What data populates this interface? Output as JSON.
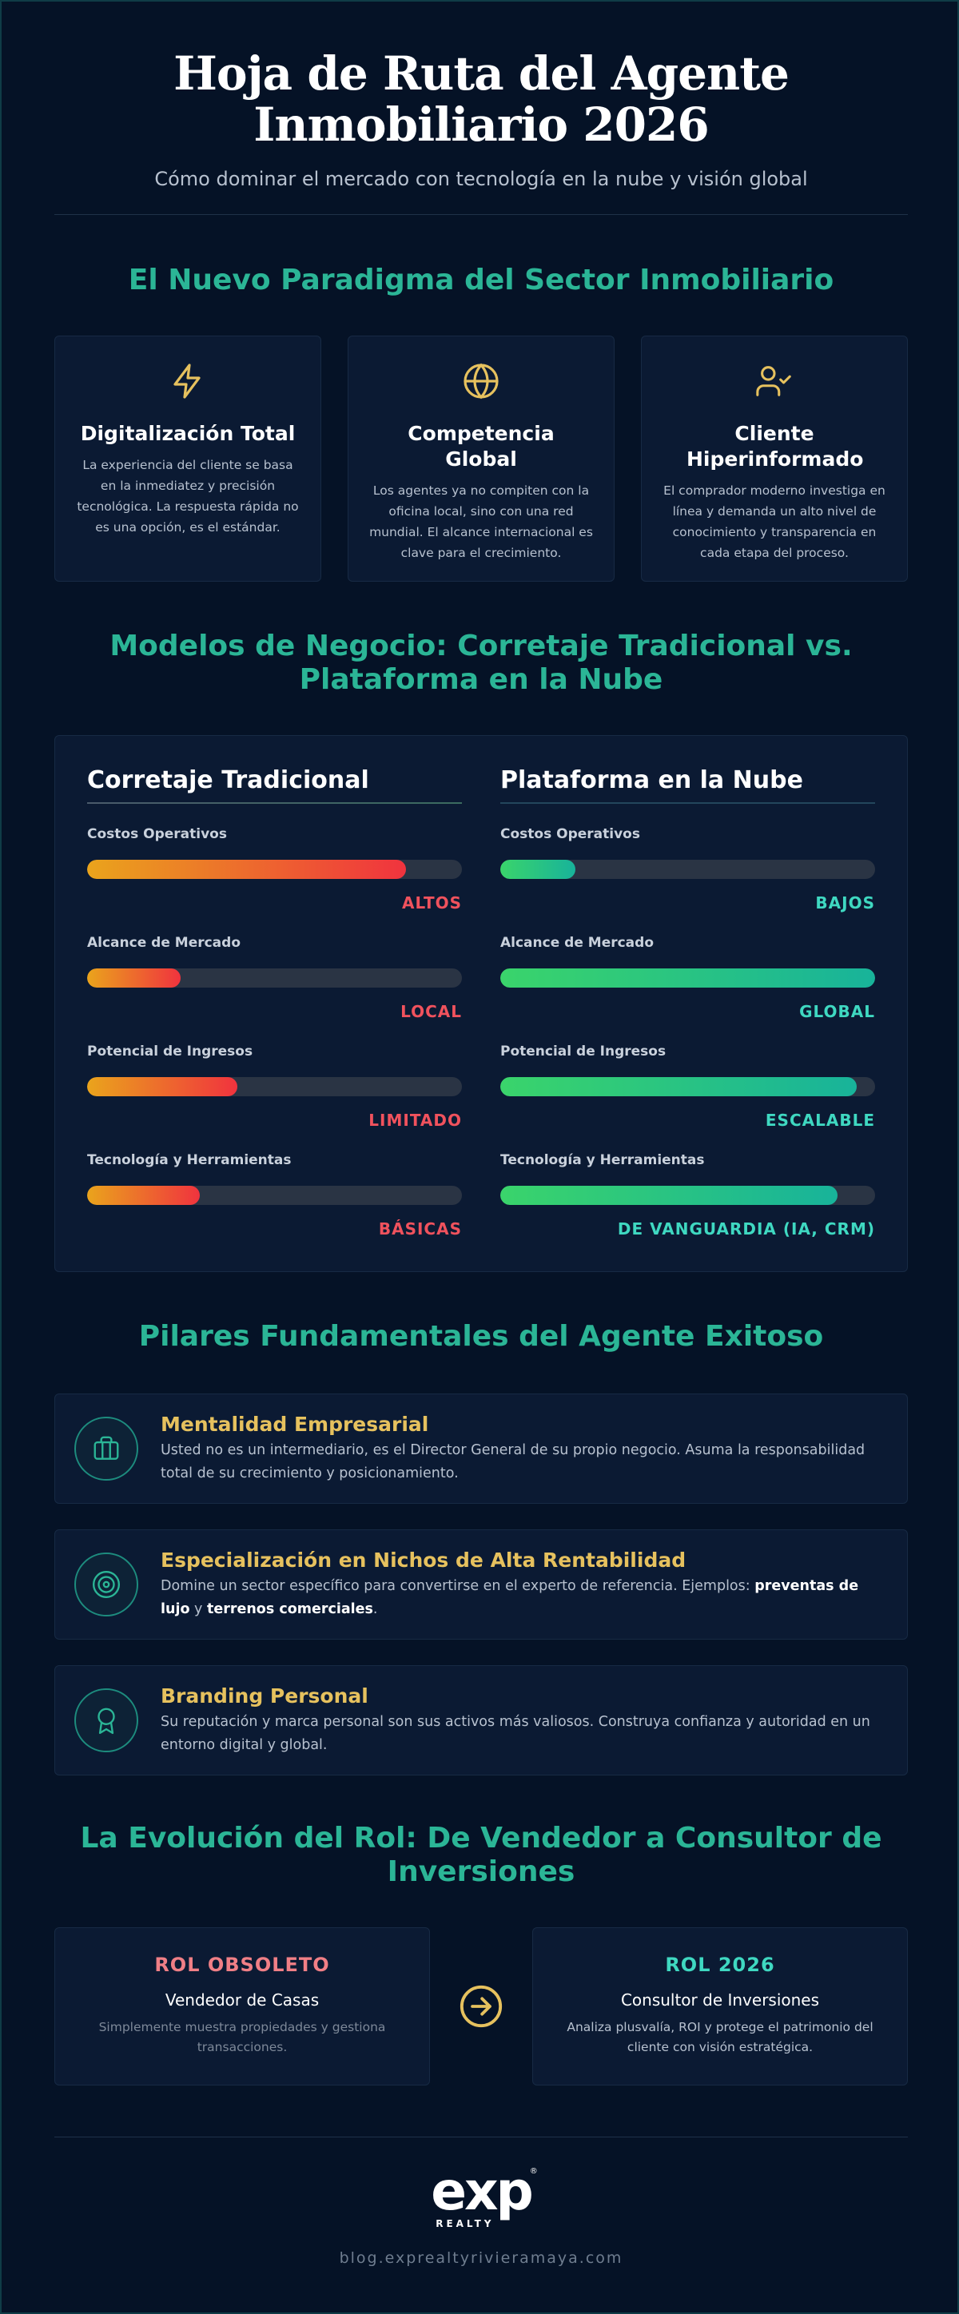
{
  "header": {
    "title_line1": "Hoja de Ruta del Agente",
    "title_line2": "Inmobiliario 2026",
    "subtitle": "Cómo dominar el mercado con tecnología en la nube y visión global"
  },
  "paradigm": {
    "title": "El Nuevo Paradigma del Sector Inmobiliario",
    "cards": [
      {
        "icon": "lightning-bolt-icon",
        "title": "Digitalización Total",
        "text": "La experiencia del cliente se basa en la inmediatez y precisión tecnológica. La respuesta rápida no es una opción, es el estándar."
      },
      {
        "icon": "globe-icon",
        "title": "Competencia Global",
        "text": "Los agentes ya no compiten con la oficina local, sino con una red mundial. El alcance internacional es clave para el crecimiento."
      },
      {
        "icon": "user-check-icon",
        "title": "Cliente Hiperinformado",
        "text": "El comprador moderno investiga en línea y demanda un alto nivel de conocimiento y transparencia en cada etapa del proceso."
      }
    ],
    "icon_color": "#e6c15e"
  },
  "comparison": {
    "title_line1": "Modelos de Negocio: Corretaje Tradicional vs.",
    "title_line2": "Plataforma en la Nube",
    "traditional": {
      "heading": "Corretaje Tradicional",
      "metrics": [
        {
          "label": "Costos Operativos",
          "value": "ALTOS",
          "level": 0.85
        },
        {
          "label": "Alcance de Mercado",
          "value": "LOCAL",
          "level": 0.25
        },
        {
          "label": "Potencial de Ingresos",
          "value": "LIMITADO",
          "level": 0.4
        },
        {
          "label": "Tecnología y Herramientas",
          "value": "BÁSICAS",
          "level": 0.3
        }
      ]
    },
    "cloud": {
      "heading": "Plataforma en la Nube",
      "metrics": [
        {
          "label": "Costos Operativos",
          "value": "BAJOS",
          "level": 0.2
        },
        {
          "label": "Alcance de Mercado",
          "value": "GLOBAL",
          "level": 1.0
        },
        {
          "label": "Potencial de Ingresos",
          "value": "ESCALABLE",
          "level": 0.95
        },
        {
          "label": "Tecnología y Herramientas",
          "value": "DE VANGUARDIA (IA, CRM)",
          "level": 0.9
        }
      ]
    },
    "colors": {
      "traditional": "#f0525d",
      "cloud": "#3fd8c1"
    }
  },
  "pillars": {
    "title": "Pilares Fundamentales del Agente Exitoso",
    "items": [
      {
        "icon": "briefcase-icon",
        "title": "Mentalidad Empresarial",
        "text": "Usted no es un intermediario, es el Director General de su propio negocio. Asuma la responsabilidad total de su crecimiento y posicionamiento."
      },
      {
        "icon": "target-icon",
        "title": "Especialización en Nichos de Alta Rentabilidad",
        "text_before": "Domine un sector específico para convertirse en el experto de referencia. Ejemplos: ",
        "bold1": "preventas de lujo",
        "text_mid": " y ",
        "bold2": "terrenos comerciales",
        "text_after": "."
      },
      {
        "icon": "award-icon",
        "title": "Branding Personal",
        "text": "Su reputación y marca personal son sus activos más valiosos. Construya confianza y autoridad en un entorno digital y global."
      }
    ],
    "accent": "#e6c15e"
  },
  "evolution": {
    "title_line1": "La Evolución del Rol: De Vendedor a Consultor de",
    "title_line2": "Inversiones",
    "old": {
      "tag": "ROL OBSOLETO",
      "name": "Vendedor de Casas",
      "desc": "Simplemente muestra propiedades y gestiona transacciones.",
      "color": "#f07f86"
    },
    "new": {
      "tag": "ROL 2026",
      "name": "Consultor de Inversiones",
      "desc": "Analiza plusvalía, ROI y protege el patrimonio del cliente con visión estratégica.",
      "color": "#3fd8c1"
    },
    "arrow_icon": "arrow-right-circle-icon"
  },
  "footer": {
    "logo_text": "exp",
    "logo_sub": "REALTY",
    "url": "blog.exprealtyrivieramaya.com"
  }
}
